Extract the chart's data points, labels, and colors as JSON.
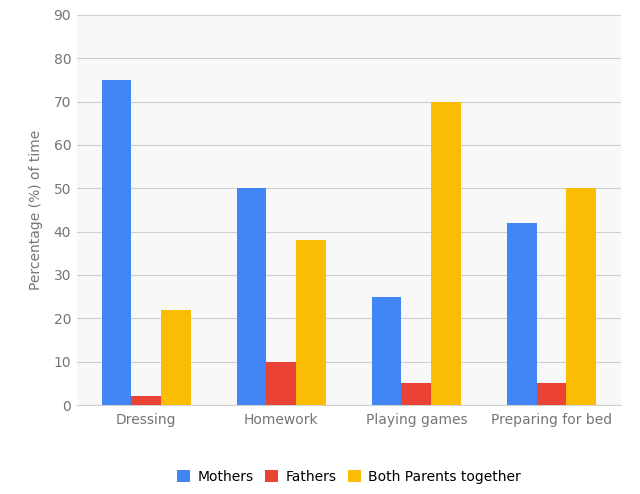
{
  "categories": [
    "Dressing",
    "Homework",
    "Playing games",
    "Preparing for bed"
  ],
  "series": {
    "Mothers": [
      75,
      50,
      25,
      42
    ],
    "Fathers": [
      2,
      10,
      5,
      5
    ],
    "Both Parents together": [
      22,
      38,
      70,
      50
    ]
  },
  "colors": {
    "Mothers": "#4285F4",
    "Fathers": "#EA4335",
    "Both Parents together": "#FBBC04"
  },
  "ylabel": "Percentage (%) of time",
  "ylim": [
    0,
    90
  ],
  "yticks": [
    0,
    10,
    20,
    30,
    40,
    50,
    60,
    70,
    80,
    90
  ],
  "legend_labels": [
    "Mothers",
    "Fathers",
    "Both Parents together"
  ],
  "bar_width": 0.22,
  "background_color": "#ffffff",
  "plot_bg_color": "#f8f8f8",
  "grid_color": "#d0d0d0"
}
